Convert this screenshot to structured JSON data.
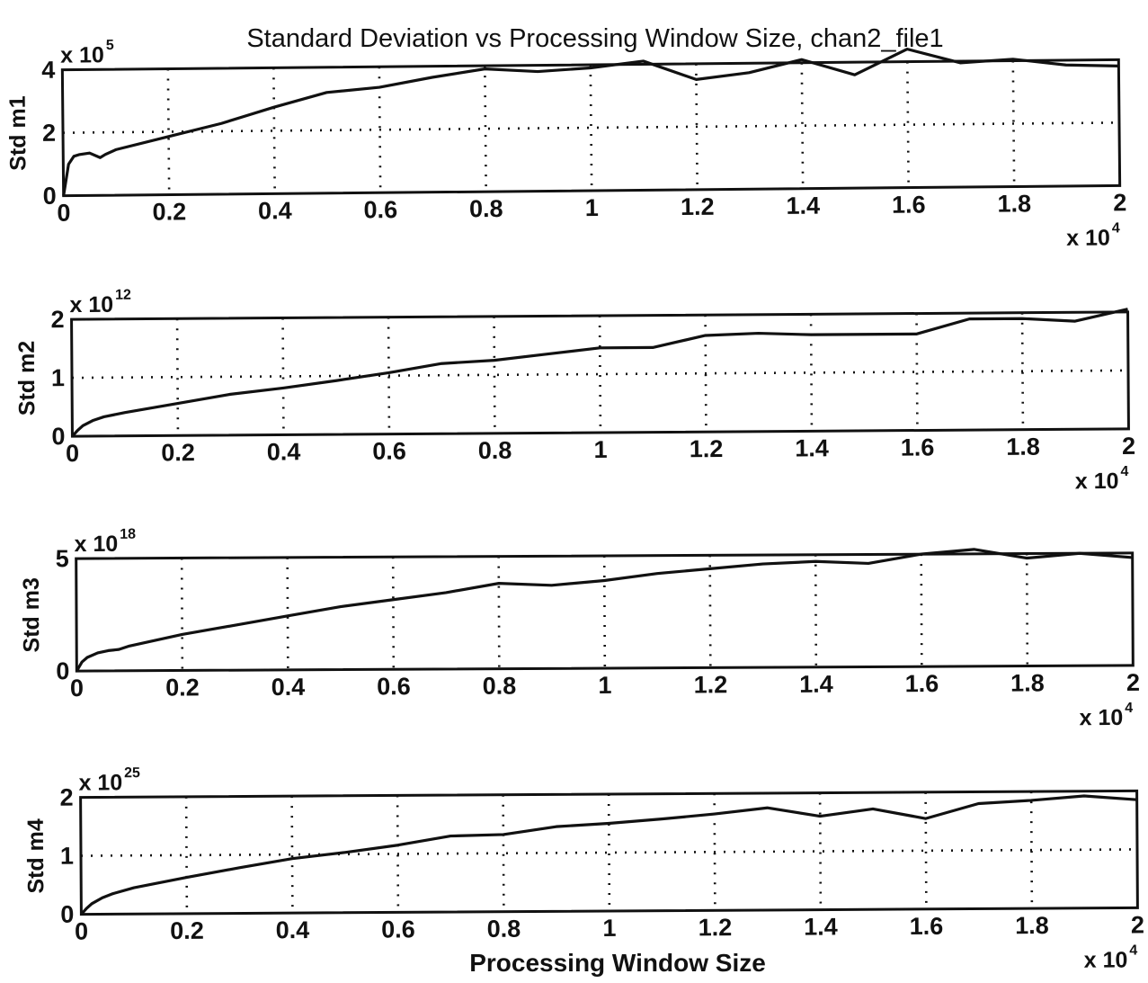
{
  "figure": {
    "title": "Standard Deviation vs Processing Window Size, chan2_file1",
    "xlabel": "Processing Window Size"
  },
  "colors": {
    "line": "#111111",
    "grid": "#111111",
    "background": "#ffffff"
  },
  "chart_data": [
    {
      "type": "line",
      "ylabel": "Std m1",
      "y_multiplier": {
        "base": "x 10",
        "exponent": "5"
      },
      "x_multiplier": {
        "base": "x 10",
        "exponent": "4"
      },
      "xlim": [
        0,
        2
      ],
      "ylim": [
        0,
        4
      ],
      "x_ticks": [
        "0",
        "0.2",
        "0.4",
        "0.6",
        "0.8",
        "1",
        "1.2",
        "1.4",
        "1.6",
        "1.8",
        "2"
      ],
      "y_ticks": [
        "0",
        "2",
        "4"
      ],
      "y_tick_values": [
        0,
        2,
        4
      ],
      "grid": true,
      "x": [
        0,
        0.01,
        0.02,
        0.03,
        0.05,
        0.07,
        0.08,
        0.1,
        0.2,
        0.3,
        0.4,
        0.5,
        0.6,
        0.7,
        0.8,
        0.9,
        1.0,
        1.1,
        1.2,
        1.3,
        1.4,
        1.5,
        1.6,
        1.7,
        1.8,
        1.9,
        2.0
      ],
      "series": [
        {
          "values": [
            0,
            1.0,
            1.25,
            1.3,
            1.35,
            1.2,
            1.3,
            1.45,
            1.85,
            2.25,
            2.75,
            3.2,
            3.35,
            3.65,
            3.9,
            3.8,
            3.9,
            4.1,
            3.5,
            3.7,
            4.1,
            3.6,
            4.4,
            3.95,
            4.05,
            3.85,
            3.8
          ]
        }
      ]
    },
    {
      "type": "line",
      "ylabel": "Std m2",
      "y_multiplier": {
        "base": "x 10",
        "exponent": "12"
      },
      "x_multiplier": {
        "base": "x 10",
        "exponent": "4"
      },
      "xlim": [
        0,
        2
      ],
      "ylim": [
        0,
        2
      ],
      "x_ticks": [
        "0",
        "0.2",
        "0.4",
        "0.6",
        "0.8",
        "1",
        "1.2",
        "1.4",
        "1.6",
        "1.8",
        "2"
      ],
      "y_ticks": [
        "0",
        "1",
        "2"
      ],
      "y_tick_values": [
        0,
        1,
        2
      ],
      "grid": true,
      "x": [
        0,
        0.01,
        0.02,
        0.04,
        0.06,
        0.1,
        0.2,
        0.3,
        0.4,
        0.5,
        0.6,
        0.7,
        0.8,
        0.9,
        1.0,
        1.1,
        1.2,
        1.3,
        1.4,
        1.5,
        1.6,
        1.7,
        1.8,
        1.9,
        2.0
      ],
      "series": [
        {
          "values": [
            0,
            0.1,
            0.18,
            0.27,
            0.33,
            0.4,
            0.55,
            0.7,
            0.8,
            0.92,
            1.05,
            1.2,
            1.25,
            1.35,
            1.45,
            1.45,
            1.65,
            1.68,
            1.65,
            1.65,
            1.65,
            1.9,
            1.9,
            1.85,
            2.05
          ]
        }
      ]
    },
    {
      "type": "line",
      "ylabel": "Std m3",
      "y_multiplier": {
        "base": "x 10",
        "exponent": "18"
      },
      "x_multiplier": {
        "base": "x 10",
        "exponent": "4"
      },
      "xlim": [
        0,
        2
      ],
      "ylim": [
        0,
        5
      ],
      "x_ticks": [
        "0",
        "0.2",
        "0.4",
        "0.6",
        "0.8",
        "1",
        "1.2",
        "1.4",
        "1.6",
        "1.8",
        "2"
      ],
      "y_ticks": [
        "0",
        "5"
      ],
      "y_tick_values": [
        0,
        5
      ],
      "grid": true,
      "x": [
        0,
        0.01,
        0.02,
        0.04,
        0.06,
        0.08,
        0.1,
        0.2,
        0.3,
        0.4,
        0.5,
        0.6,
        0.7,
        0.8,
        0.9,
        1.0,
        1.1,
        1.2,
        1.3,
        1.4,
        1.5,
        1.6,
        1.7,
        1.8,
        1.9,
        2.0
      ],
      "series": [
        {
          "values": [
            0,
            0.4,
            0.6,
            0.8,
            0.9,
            0.95,
            1.1,
            1.6,
            2.0,
            2.4,
            2.8,
            3.1,
            3.4,
            3.8,
            3.7,
            3.9,
            4.2,
            4.4,
            4.6,
            4.7,
            4.6,
            5.0,
            5.2,
            4.8,
            5.0,
            4.8
          ]
        }
      ]
    },
    {
      "type": "line",
      "ylabel": "Std m4",
      "y_multiplier": {
        "base": "x 10",
        "exponent": "25"
      },
      "x_multiplier": {
        "base": "x 10",
        "exponent": "4"
      },
      "xlim": [
        0,
        2
      ],
      "ylim": [
        0,
        2
      ],
      "x_ticks": [
        "0",
        "0.2",
        "0.4",
        "0.6",
        "0.8",
        "1",
        "1.2",
        "1.4",
        "1.6",
        "1.8",
        "2"
      ],
      "y_ticks": [
        "0",
        "1",
        "2"
      ],
      "y_tick_values": [
        0,
        1,
        2
      ],
      "grid": true,
      "x": [
        0,
        0.01,
        0.02,
        0.04,
        0.06,
        0.1,
        0.2,
        0.3,
        0.4,
        0.5,
        0.6,
        0.7,
        0.8,
        0.9,
        1.0,
        1.1,
        1.2,
        1.3,
        1.4,
        1.5,
        1.6,
        1.7,
        1.8,
        1.9,
        2.0
      ],
      "series": [
        {
          "values": [
            0,
            0.1,
            0.18,
            0.28,
            0.35,
            0.45,
            0.62,
            0.78,
            0.93,
            1.03,
            1.15,
            1.3,
            1.32,
            1.45,
            1.5,
            1.57,
            1.65,
            1.75,
            1.6,
            1.72,
            1.55,
            1.8,
            1.85,
            1.92,
            1.85
          ]
        }
      ]
    }
  ]
}
